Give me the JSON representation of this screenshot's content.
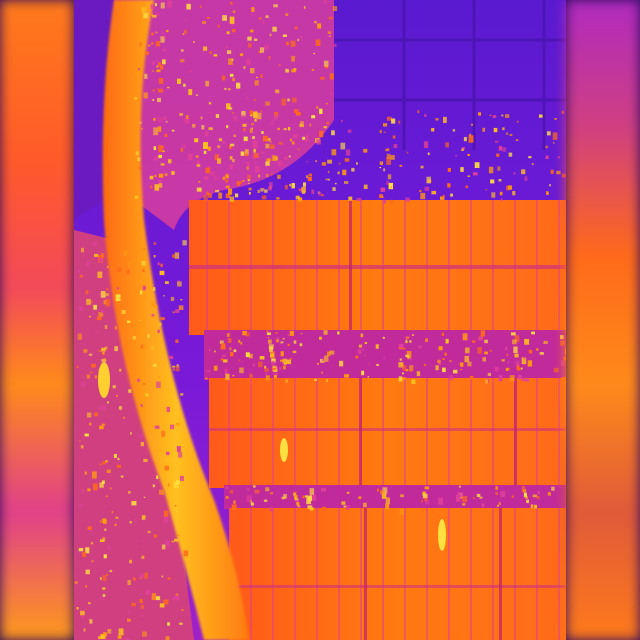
{
  "image": {
    "description_palette": {
      "cold": "#3a10a0",
      "cool": "#8a1ad0",
      "mid": "#e0309a",
      "warm": "#ff5a1a",
      "hot": "#ff9a10",
      "hottest": "#ffe040"
    }
  }
}
